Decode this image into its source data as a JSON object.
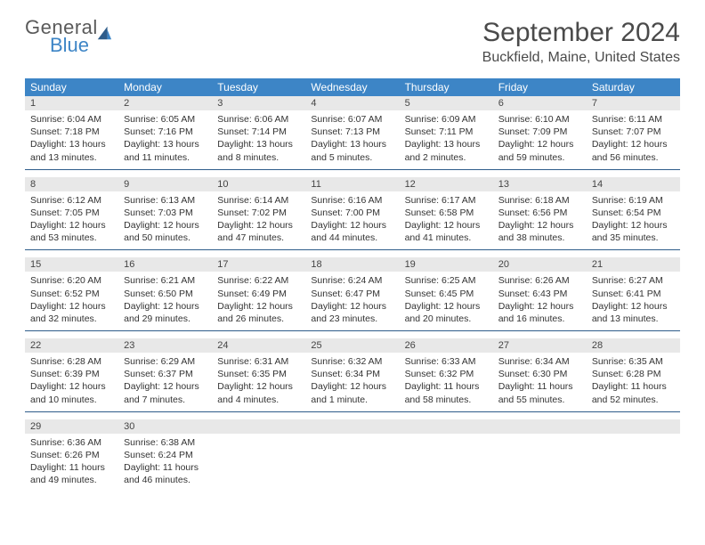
{
  "logo": {
    "general": "General",
    "blue": "Blue"
  },
  "title": {
    "month": "September 2024",
    "location": "Buckfield, Maine, United States"
  },
  "colors": {
    "header_bg": "#3d85c6",
    "header_fg": "#ffffff",
    "daynum_bg": "#e8e8e8",
    "rule": "#2e5c8a"
  },
  "dow": [
    "Sunday",
    "Monday",
    "Tuesday",
    "Wednesday",
    "Thursday",
    "Friday",
    "Saturday"
  ],
  "days": [
    {
      "n": "1",
      "sr": "6:04 AM",
      "ss": "7:18 PM",
      "dl": "13 hours and 13 minutes."
    },
    {
      "n": "2",
      "sr": "6:05 AM",
      "ss": "7:16 PM",
      "dl": "13 hours and 11 minutes."
    },
    {
      "n": "3",
      "sr": "6:06 AM",
      "ss": "7:14 PM",
      "dl": "13 hours and 8 minutes."
    },
    {
      "n": "4",
      "sr": "6:07 AM",
      "ss": "7:13 PM",
      "dl": "13 hours and 5 minutes."
    },
    {
      "n": "5",
      "sr": "6:09 AM",
      "ss": "7:11 PM",
      "dl": "13 hours and 2 minutes."
    },
    {
      "n": "6",
      "sr": "6:10 AM",
      "ss": "7:09 PM",
      "dl": "12 hours and 59 minutes."
    },
    {
      "n": "7",
      "sr": "6:11 AM",
      "ss": "7:07 PM",
      "dl": "12 hours and 56 minutes."
    },
    {
      "n": "8",
      "sr": "6:12 AM",
      "ss": "7:05 PM",
      "dl": "12 hours and 53 minutes."
    },
    {
      "n": "9",
      "sr": "6:13 AM",
      "ss": "7:03 PM",
      "dl": "12 hours and 50 minutes."
    },
    {
      "n": "10",
      "sr": "6:14 AM",
      "ss": "7:02 PM",
      "dl": "12 hours and 47 minutes."
    },
    {
      "n": "11",
      "sr": "6:16 AM",
      "ss": "7:00 PM",
      "dl": "12 hours and 44 minutes."
    },
    {
      "n": "12",
      "sr": "6:17 AM",
      "ss": "6:58 PM",
      "dl": "12 hours and 41 minutes."
    },
    {
      "n": "13",
      "sr": "6:18 AM",
      "ss": "6:56 PM",
      "dl": "12 hours and 38 minutes."
    },
    {
      "n": "14",
      "sr": "6:19 AM",
      "ss": "6:54 PM",
      "dl": "12 hours and 35 minutes."
    },
    {
      "n": "15",
      "sr": "6:20 AM",
      "ss": "6:52 PM",
      "dl": "12 hours and 32 minutes."
    },
    {
      "n": "16",
      "sr": "6:21 AM",
      "ss": "6:50 PM",
      "dl": "12 hours and 29 minutes."
    },
    {
      "n": "17",
      "sr": "6:22 AM",
      "ss": "6:49 PM",
      "dl": "12 hours and 26 minutes."
    },
    {
      "n": "18",
      "sr": "6:24 AM",
      "ss": "6:47 PM",
      "dl": "12 hours and 23 minutes."
    },
    {
      "n": "19",
      "sr": "6:25 AM",
      "ss": "6:45 PM",
      "dl": "12 hours and 20 minutes."
    },
    {
      "n": "20",
      "sr": "6:26 AM",
      "ss": "6:43 PM",
      "dl": "12 hours and 16 minutes."
    },
    {
      "n": "21",
      "sr": "6:27 AM",
      "ss": "6:41 PM",
      "dl": "12 hours and 13 minutes."
    },
    {
      "n": "22",
      "sr": "6:28 AM",
      "ss": "6:39 PM",
      "dl": "12 hours and 10 minutes."
    },
    {
      "n": "23",
      "sr": "6:29 AM",
      "ss": "6:37 PM",
      "dl": "12 hours and 7 minutes."
    },
    {
      "n": "24",
      "sr": "6:31 AM",
      "ss": "6:35 PM",
      "dl": "12 hours and 4 minutes."
    },
    {
      "n": "25",
      "sr": "6:32 AM",
      "ss": "6:34 PM",
      "dl": "12 hours and 1 minute."
    },
    {
      "n": "26",
      "sr": "6:33 AM",
      "ss": "6:32 PM",
      "dl": "11 hours and 58 minutes."
    },
    {
      "n": "27",
      "sr": "6:34 AM",
      "ss": "6:30 PM",
      "dl": "11 hours and 55 minutes."
    },
    {
      "n": "28",
      "sr": "6:35 AM",
      "ss": "6:28 PM",
      "dl": "11 hours and 52 minutes."
    },
    {
      "n": "29",
      "sr": "6:36 AM",
      "ss": "6:26 PM",
      "dl": "11 hours and 49 minutes."
    },
    {
      "n": "30",
      "sr": "6:38 AM",
      "ss": "6:24 PM",
      "dl": "11 hours and 46 minutes."
    }
  ],
  "labels": {
    "sunrise": "Sunrise:",
    "sunset": "Sunset:",
    "daylight": "Daylight:"
  }
}
